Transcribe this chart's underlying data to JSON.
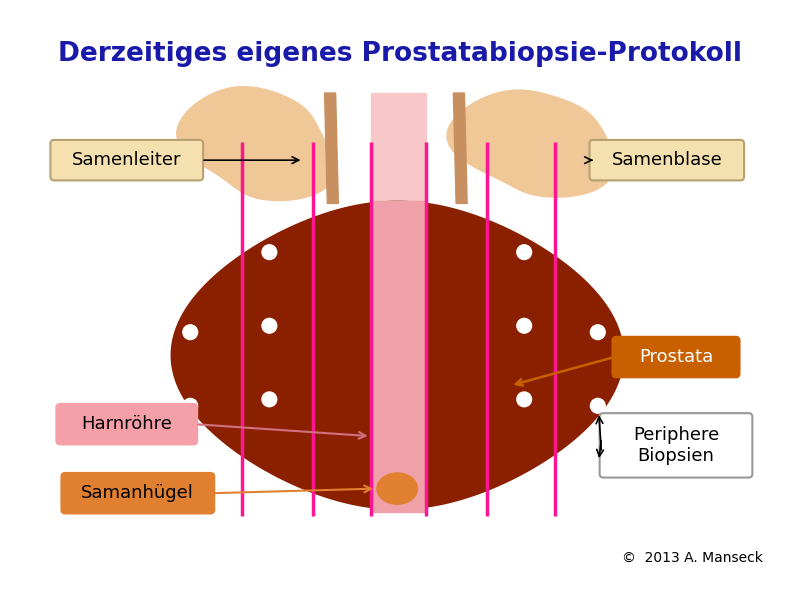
{
  "title": "Derzeitiges eigenes Prostatabiopsie-Protokoll",
  "title_color": "#1a1aaa",
  "title_fontsize": 19,
  "bg_color": "#ffffff",
  "prostate_color": "#8B2000",
  "urethra_color": "#F0A0A8",
  "seminal_vesicle_color": "#F0C898",
  "vas_deferens_color": "#C89060",
  "biopsy_line_color": "#FF1493",
  "biopsy_dot_color": "#ffffff",
  "samenhugel_color": "#E08030",
  "label_samenleiter": "Samenleiter",
  "label_samenblase": "Samenblase",
  "label_prostata": "Prostata",
  "label_harnrohre": "Harnröhre",
  "label_samenhugel": "Samanhügel",
  "label_periphere": "Periphere\nBiopsien",
  "label_copyright": "©  2013 A. Manseck",
  "samenleiter_bg": "#F5E0B0",
  "samenblase_bg": "#F5E0B0",
  "prostata_bg": "#C86000",
  "harnrohre_bg": "#F5A0A8",
  "samenhugel_bg": "#E08030",
  "periphere_bg": "#ffffff"
}
